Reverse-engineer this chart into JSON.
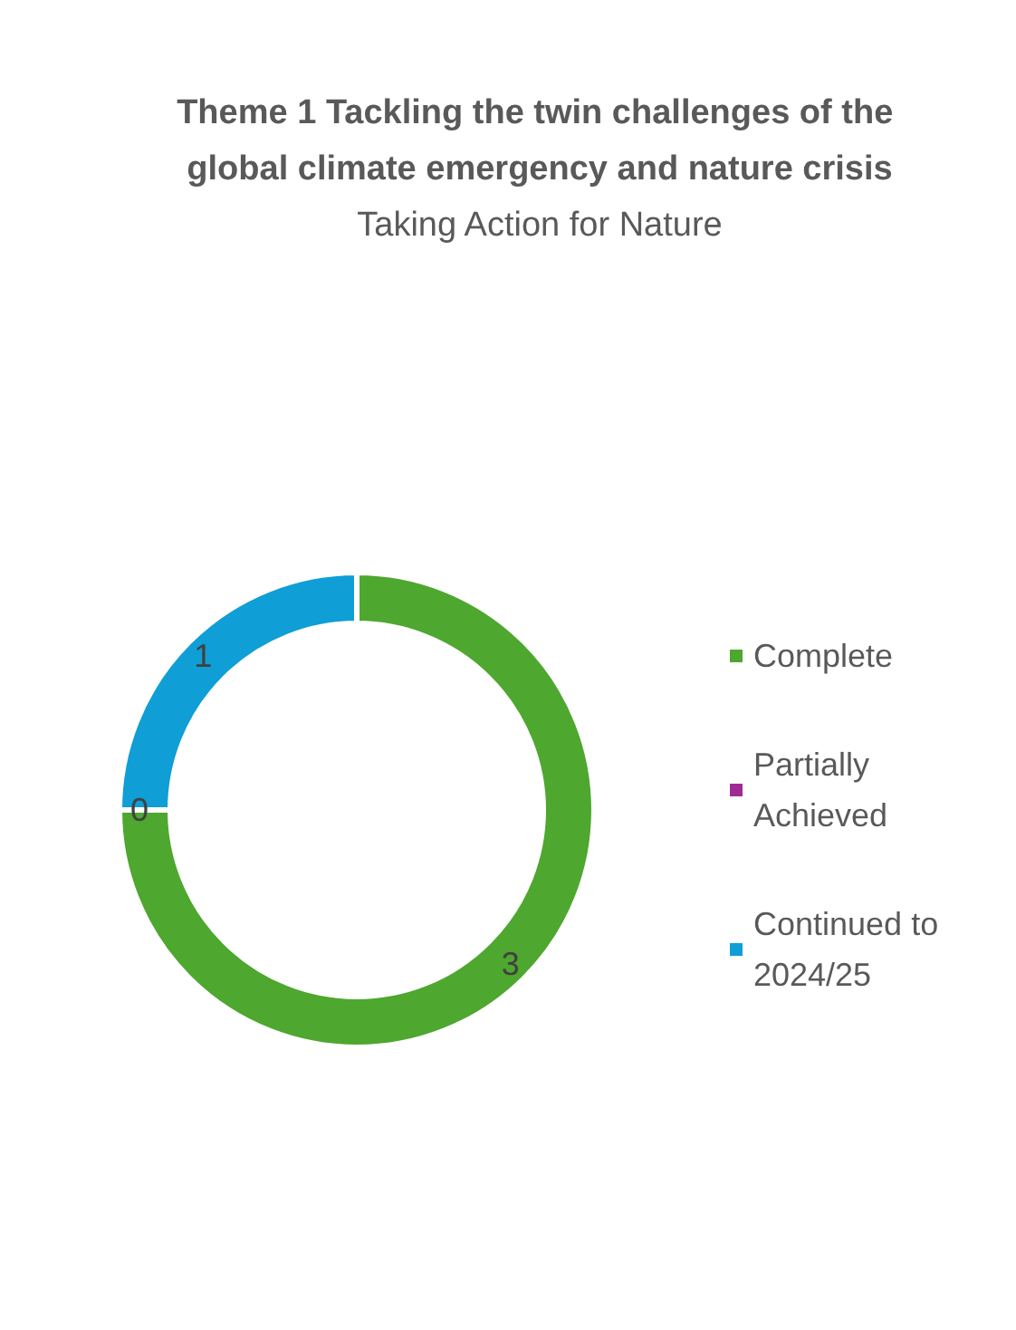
{
  "chart_data": {
    "type": "donut",
    "title": "Theme 1 Tackling the twin challenges of the global climate emergency and nature crisis",
    "subtitle": "Taking Action for Nature",
    "categories": [
      "Complete",
      "Partially Achieved",
      "Continued to 2024/25"
    ],
    "values": [
      3,
      0,
      1
    ],
    "colors": [
      "#4ea72e",
      "#a02b93",
      "#0f9ed5"
    ],
    "value_labels": [
      "3",
      "0",
      "1"
    ],
    "legend": "right"
  }
}
